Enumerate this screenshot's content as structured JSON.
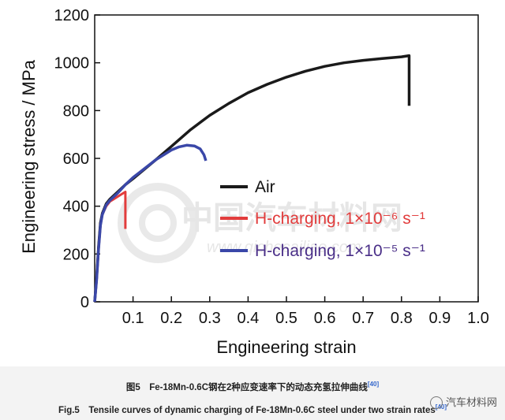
{
  "chart_data": {
    "type": "line",
    "xlabel": "Engineering strain",
    "ylabel": "Engineering stress / MPa",
    "xlim": [
      0,
      1.0
    ],
    "ylim": [
      0,
      1200
    ],
    "x_ticks": [
      "0.1",
      "0.2",
      "0.3",
      "0.4",
      "0.5",
      "0.6",
      "0.7",
      "0.8",
      "0.9",
      "1.0"
    ],
    "x_tick_values": [
      0.1,
      0.2,
      0.3,
      0.4,
      0.5,
      0.6,
      0.7,
      0.8,
      0.9,
      1.0
    ],
    "y_ticks": [
      "0",
      "200",
      "400",
      "600",
      "800",
      "1000",
      "1200"
    ],
    "y_tick_values": [
      0,
      200,
      400,
      600,
      800,
      1000,
      1200
    ],
    "grid": false,
    "legend_position": "center-right",
    "series": [
      {
        "name": "Air",
        "color": "#1a1a1a",
        "x": [
          0.0,
          0.005,
          0.01,
          0.015,
          0.02,
          0.03,
          0.04,
          0.06,
          0.08,
          0.1,
          0.13,
          0.16,
          0.2,
          0.25,
          0.3,
          0.35,
          0.4,
          0.45,
          0.5,
          0.55,
          0.6,
          0.65,
          0.7,
          0.75,
          0.8,
          0.82,
          0.82
        ],
        "y": [
          0,
          100,
          230,
          330,
          370,
          410,
          430,
          460,
          490,
          515,
          555,
          595,
          650,
          720,
          780,
          830,
          875,
          910,
          940,
          965,
          985,
          1000,
          1010,
          1018,
          1025,
          1030,
          820
        ]
      },
      {
        "name": "H-charging, 1×10⁻⁶ s⁻¹",
        "color": "#e23c3c",
        "x": [
          0.0,
          0.005,
          0.01,
          0.015,
          0.02,
          0.03,
          0.04,
          0.05,
          0.06,
          0.07,
          0.075,
          0.08,
          0.08
        ],
        "y": [
          0,
          90,
          220,
          320,
          365,
          400,
          420,
          430,
          440,
          450,
          455,
          460,
          305
        ]
      },
      {
        "name": "H-charging, 1×10⁻⁵ s⁻¹",
        "color": "#3a47a8",
        "x": [
          0.0,
          0.005,
          0.01,
          0.015,
          0.02,
          0.03,
          0.04,
          0.06,
          0.08,
          0.1,
          0.12,
          0.14,
          0.16,
          0.18,
          0.2,
          0.22,
          0.24,
          0.26,
          0.275,
          0.285,
          0.29
        ],
        "y": [
          0,
          90,
          220,
          320,
          365,
          405,
          425,
          455,
          490,
          520,
          545,
          570,
          595,
          615,
          635,
          648,
          655,
          652,
          640,
          615,
          590
        ]
      }
    ]
  },
  "legend": {
    "entries": [
      {
        "label": "Air",
        "color": "#1a1a1a"
      },
      {
        "label": "H-charging, 1×10⁻⁶ s⁻¹",
        "color": "#e23c3c"
      },
      {
        "label": "H-charging, 1×10⁻⁵ s⁻¹",
        "color": "#3a47a8"
      }
    ]
  },
  "watermark": {
    "logo_text": "中国汽车材料网",
    "url_text": "www.qichecailiao.com"
  },
  "caption": {
    "cn": "图5　Fe-18Mn-0.6C钢在2种应变速率下的动态充氢拉伸曲线",
    "en": "Fig.5　Tensile curves of dynamic charging of Fe-18Mn-0.6C steel under two strain rates",
    "ref": "[40]"
  },
  "source_mark": "汽车材料网"
}
